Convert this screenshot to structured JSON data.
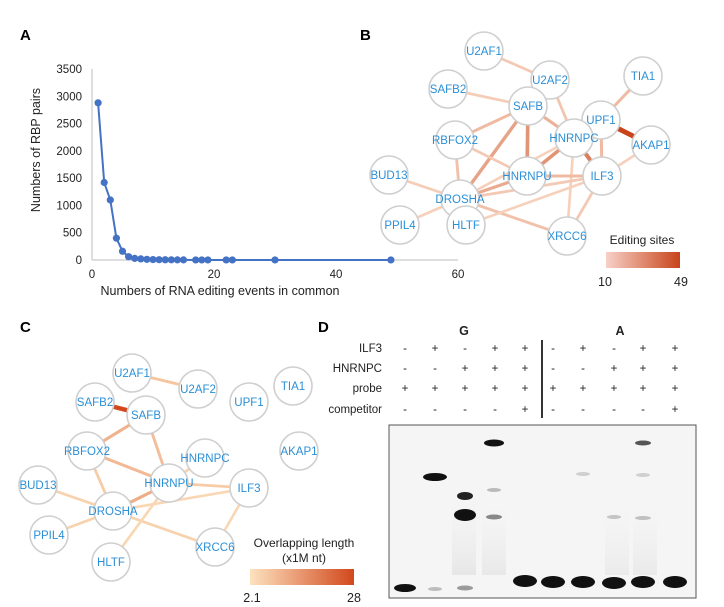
{
  "panels": {
    "a": {
      "letter": "A"
    },
    "b": {
      "letter": "B",
      "legend_title": "Editing sites",
      "legend_min": "10",
      "legend_max": "49",
      "color_low": "#f7d0c7",
      "color_high": "#c8441a"
    },
    "c": {
      "letter": "C",
      "legend_title_1": "Overlapping length",
      "legend_title_2": "(x1M nt)",
      "legend_min": "2.1",
      "legend_max": "28",
      "color_low": "#fde2bf",
      "color_high": "#d2481c"
    },
    "d": {
      "letter": "D"
    }
  },
  "chart_data": {
    "type": "line",
    "title": "",
    "xlabel": "Numbers of RNA editing events in common",
    "ylabel": "Numbers of  RBP pairs",
    "xlim": [
      0,
      60
    ],
    "ylim": [
      0,
      3500
    ],
    "xticks": [
      "0",
      "20",
      "40",
      "60"
    ],
    "yticks": [
      "0",
      "500",
      "1000",
      "1500",
      "2000",
      "2500",
      "3000",
      "3500"
    ],
    "grid": false,
    "series": [
      {
        "color": "#4472c4",
        "x": [
          1,
          2,
          3,
          4,
          5,
          6,
          7,
          8,
          9,
          10,
          11,
          12,
          13,
          14,
          15,
          17,
          18,
          19,
          22,
          23,
          30,
          49
        ],
        "y": [
          2880,
          1420,
          1100,
          400,
          160,
          60,
          30,
          20,
          12,
          8,
          6,
          4,
          3,
          2,
          2,
          1,
          1,
          1,
          1,
          1,
          1,
          1
        ]
      }
    ]
  },
  "network_b": {
    "nodes": [
      "U2AF1",
      "U2AF2",
      "TIA1",
      "SAFB2",
      "SAFB",
      "UPF1",
      "RBFOX2",
      "HNRNPC",
      "AKAP1",
      "BUD13",
      "HNRNPU",
      "ILF3",
      "DROSHA",
      "PPIL4",
      "HLTF",
      "XRCC6"
    ],
    "edges": [
      [
        "U2AF1",
        "U2AF2",
        14
      ],
      [
        "U2AF2",
        "HNRNPC",
        15
      ],
      [
        "TIA1",
        "UPF1",
        18
      ],
      [
        "SAFB2",
        "SAFB",
        13
      ],
      [
        "SAFB",
        "RBFOX2",
        18
      ],
      [
        "SAFB",
        "DROSHA",
        24
      ],
      [
        "SAFB",
        "HNRNPU",
        28
      ],
      [
        "SAFB",
        "HNRNPC",
        20
      ],
      [
        "UPF1",
        "AKAP1",
        49
      ],
      [
        "UPF1",
        "HNRNPC",
        16
      ],
      [
        "UPF1",
        "ILF3",
        18
      ],
      [
        "HNRNPC",
        "ILF3",
        34
      ],
      [
        "HNRNPC",
        "HNRNPU",
        28
      ],
      [
        "HNRNPC",
        "DROSHA",
        12
      ],
      [
        "HNRNPC",
        "XRCC6",
        12
      ],
      [
        "RBFOX2",
        "DROSHA",
        16
      ],
      [
        "RBFOX2",
        "HNRNPU",
        14
      ],
      [
        "HNRNPU",
        "DROSHA",
        22
      ],
      [
        "HNRNPU",
        "ILF3",
        18
      ],
      [
        "DROSHA",
        "ILF3",
        14
      ],
      [
        "DROSHA",
        "BUD13",
        13
      ],
      [
        "DROSHA",
        "PPIL4",
        12
      ],
      [
        "DROSHA",
        "XRCC6",
        16
      ],
      [
        "ILF3",
        "AKAP1",
        12
      ],
      [
        "ILF3",
        "XRCC6",
        14
      ],
      [
        "ILF3",
        "HLTF",
        12
      ]
    ]
  },
  "network_c": {
    "nodes": [
      "U2AF1",
      "U2AF2",
      "TIA1",
      "SAFB2",
      "SAFB",
      "UPF1",
      "AKAP1",
      "RBFOX2",
      "HNRNPC",
      "HNRNPU",
      "ILF3",
      "BUD13",
      "DROSHA",
      "PPIL4",
      "HLTF",
      "XRCC6"
    ],
    "edges": [
      [
        "U2AF1",
        "U2AF2",
        7
      ],
      [
        "SAFB2",
        "SAFB",
        28
      ],
      [
        "SAFB",
        "RBFOX2",
        10
      ],
      [
        "SAFB",
        "HNRNPU",
        8
      ],
      [
        "RBFOX2",
        "HNRNPU",
        9
      ],
      [
        "RBFOX2",
        "DROSHA",
        6
      ],
      [
        "HNRNPC",
        "HNRNPU",
        5
      ],
      [
        "HNRNPU",
        "ILF3",
        6
      ],
      [
        "HNRNPU",
        "DROSHA",
        11
      ],
      [
        "DROSHA",
        "BUD13",
        5
      ],
      [
        "DROSHA",
        "PPIL4",
        5
      ],
      [
        "DROSHA",
        "XRCC6",
        5
      ],
      [
        "DROSHA",
        "ILF3",
        4
      ],
      [
        "ILF3",
        "XRCC6",
        4
      ],
      [
        "HLTF",
        "HNRNPU",
        4
      ]
    ]
  },
  "gel": {
    "group_g": "G",
    "group_a": "A",
    "rows": [
      {
        "label": "ILF3",
        "signs": [
          "-",
          "+",
          "-",
          "+",
          "+",
          "-",
          "+",
          "-",
          "+",
          "+"
        ]
      },
      {
        "label": "HNRNPC",
        "signs": [
          "-",
          "-",
          "+",
          "+",
          "+",
          "-",
          "-",
          "+",
          "+",
          "+"
        ]
      },
      {
        "label": "probe",
        "signs": [
          "+",
          "+",
          "+",
          "+",
          "+",
          "+",
          "+",
          "+",
          "+",
          "+"
        ]
      },
      {
        "label": "competitor",
        "signs": [
          "-",
          "-",
          "-",
          "-",
          "+",
          "-",
          "-",
          "-",
          "-",
          "+"
        ]
      }
    ]
  }
}
